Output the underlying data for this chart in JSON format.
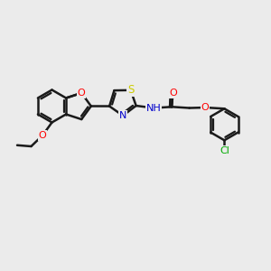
{
  "bg_color": "#ebebeb",
  "bond_color": "#1a1a1a",
  "bond_width": 1.8,
  "atom_colors": {
    "O": "#ff0000",
    "N": "#0000cc",
    "S": "#cccc00",
    "Cl": "#00aa00",
    "C": "#1a1a1a",
    "H": "#888888"
  },
  "font_size": 8.0,
  "fig_size": [
    3.0,
    3.0
  ],
  "dpi": 100,
  "xlim": [
    0,
    12
  ],
  "ylim": [
    0,
    10
  ]
}
